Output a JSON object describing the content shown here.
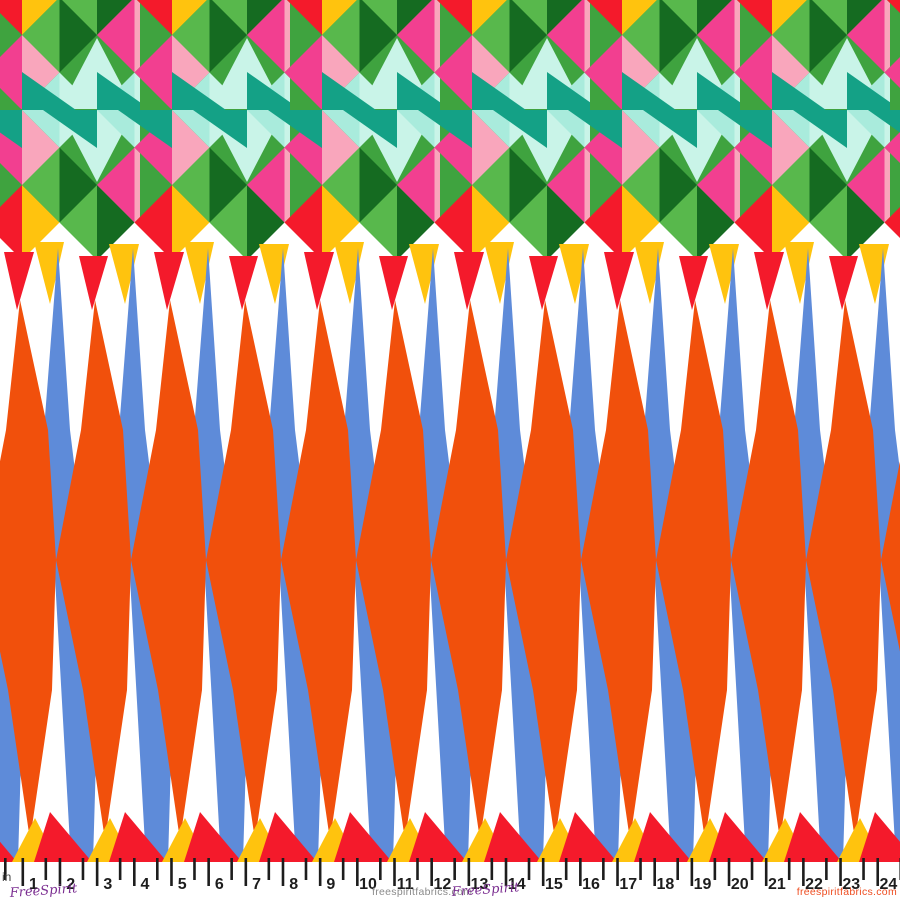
{
  "colors": {
    "red": "#F41A2B",
    "yellow": "#FFC30E",
    "darkgreen": "#156B21",
    "lightgreen": "#58B84C",
    "basegreen": "#3FA33F",
    "darkpink": "#F23F90",
    "lightpink": "#F9A6BC",
    "teal": "#14A186",
    "aqua": "#A9EBDC",
    "mint": "#C9F4E8",
    "orange": "#F1500C",
    "blue": "#5E8BD9",
    "ink": "#1d1d1d",
    "textgray": "#8a8a8a",
    "textred": "#EE4E22",
    "brandpurple": "#7B2E91"
  },
  "ruler": {
    "unit_label": "in",
    "inches": [
      "1",
      "2",
      "3",
      "4",
      "5",
      "6",
      "7",
      "8",
      "9",
      "10",
      "11",
      "12",
      "13",
      "14",
      "15",
      "16",
      "17",
      "18",
      "19",
      "20",
      "21",
      "22",
      "23",
      "24"
    ]
  },
  "footer": {
    "brand_script": "FreeSpirit",
    "website_center": "freespiritfabrics.com",
    "website_right": "freespiritfabrics.com"
  }
}
